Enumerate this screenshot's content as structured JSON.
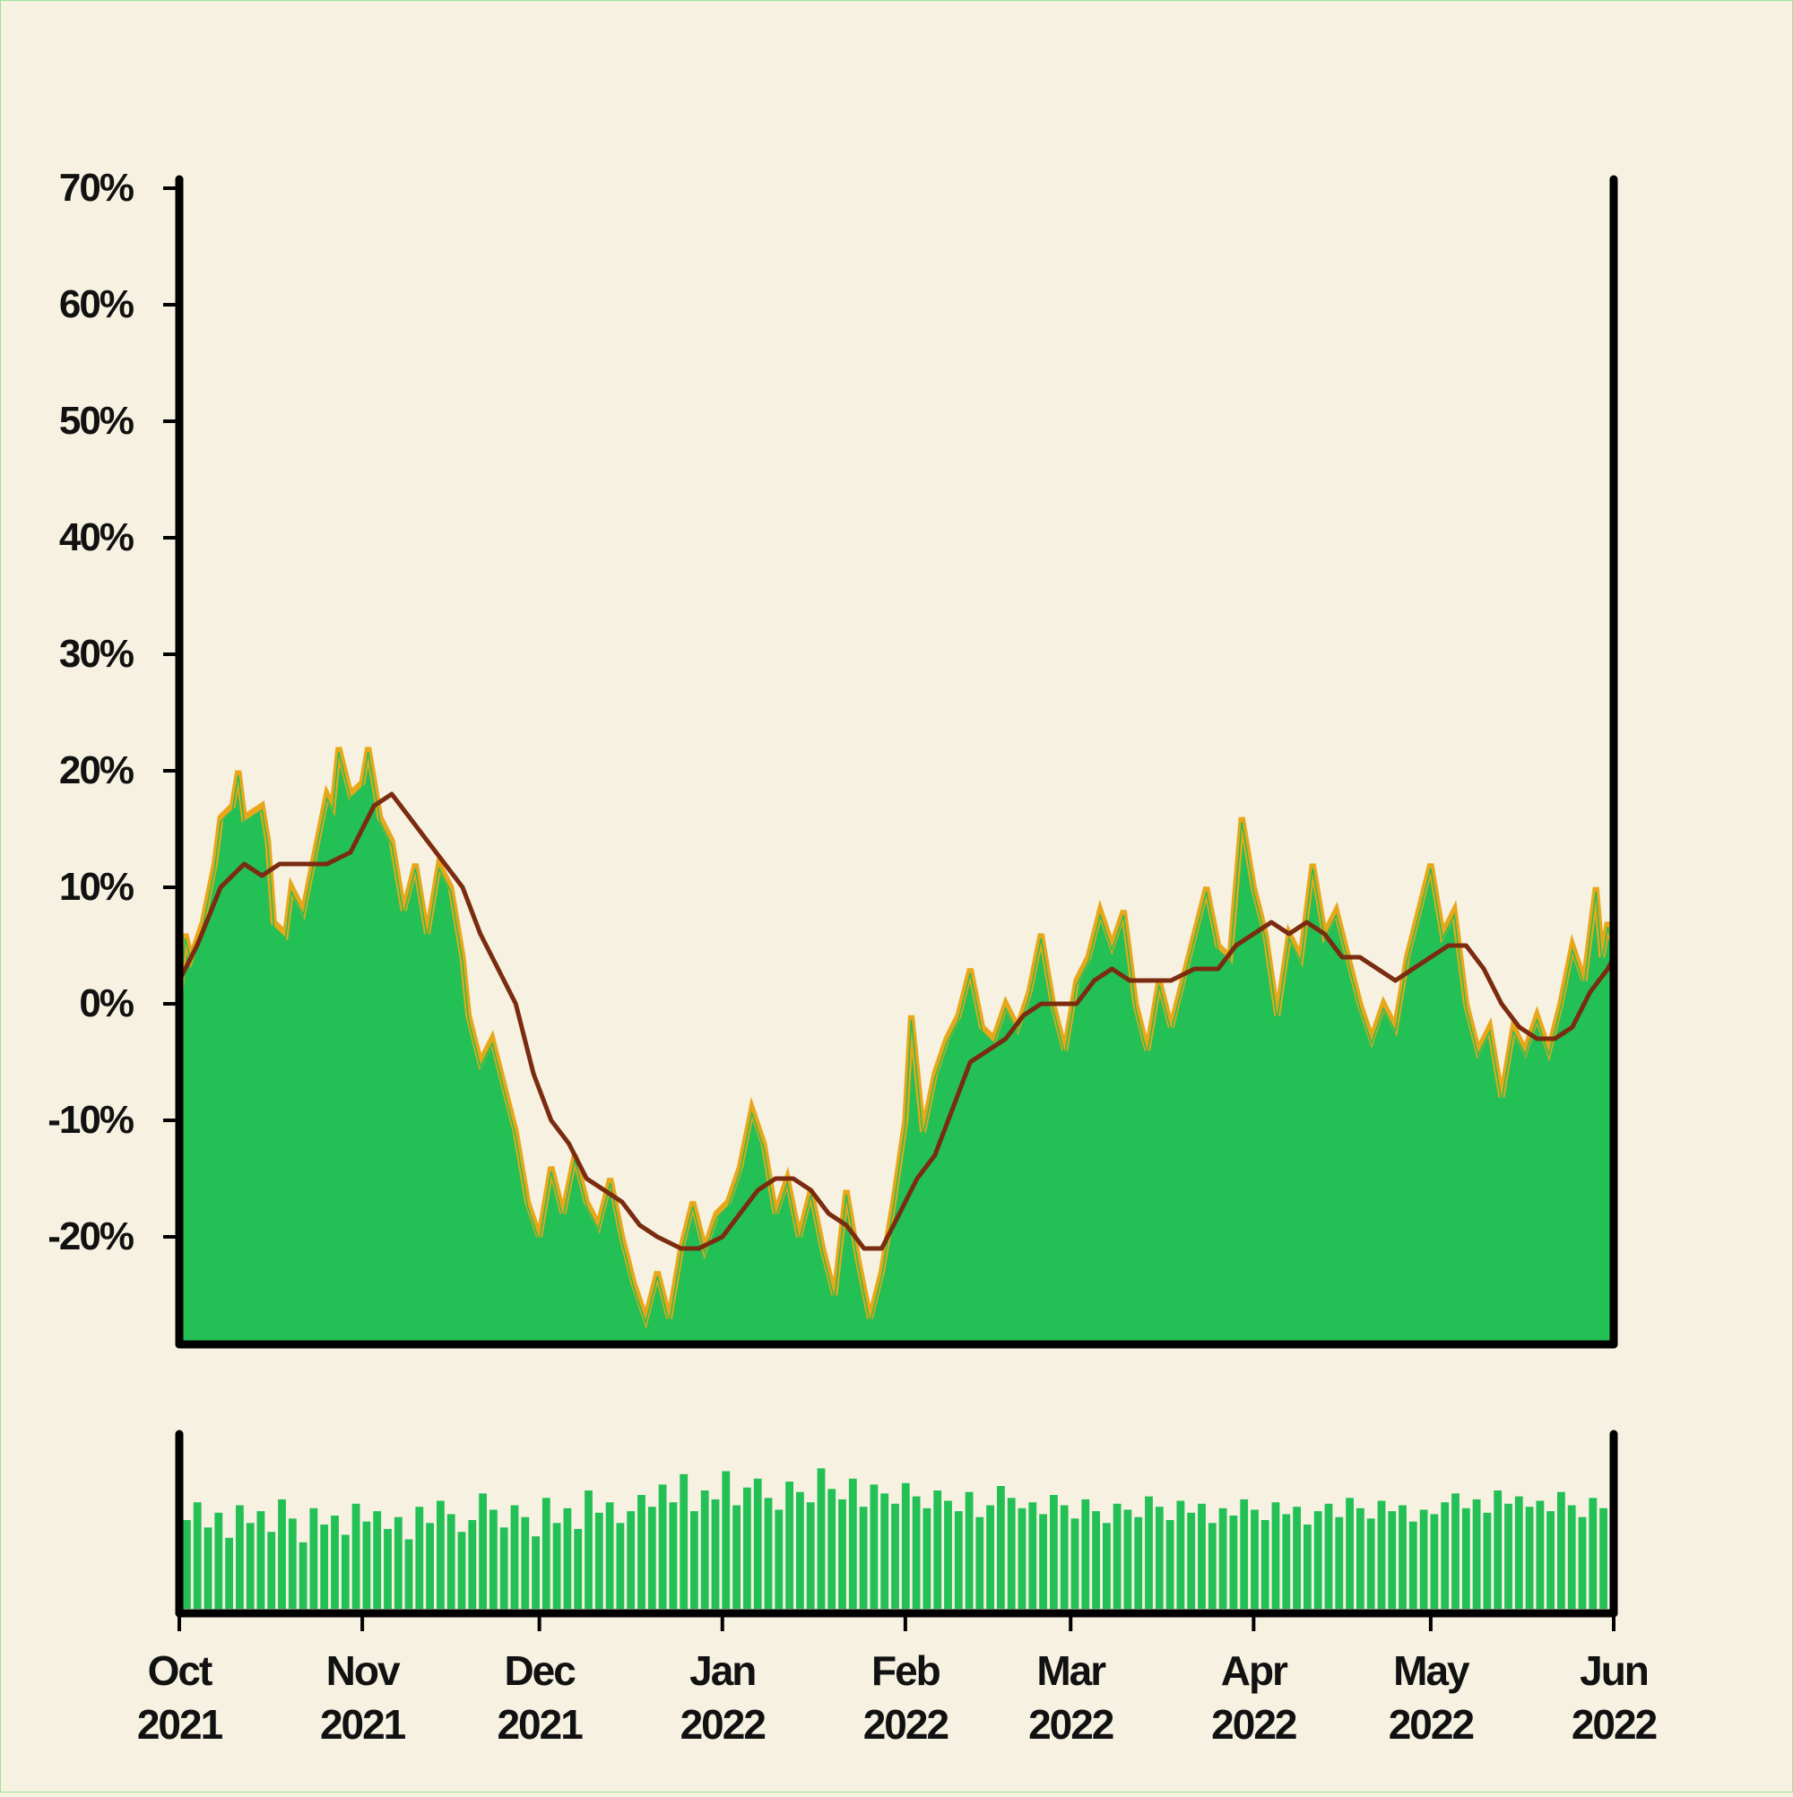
{
  "chart_data": {
    "type": "area",
    "title": "",
    "xlabel": "",
    "ylabel": "",
    "x_start": "2021-10-01",
    "x_end": "2022-06-01",
    "ylim": [
      -28,
      70
    ],
    "y_ticks": [
      70,
      60,
      50,
      40,
      30,
      20,
      10,
      0,
      -10,
      -20
    ],
    "y_tick_labels": [
      "70%",
      "60%",
      "50%",
      "40%",
      "30%",
      "20%",
      "10%",
      "0%",
      "-10%",
      "-20%"
    ],
    "x_ticks": [
      {
        "date": "2021-10-01",
        "month": "Oct",
        "year": "2021"
      },
      {
        "date": "2021-11-01",
        "month": "Nov",
        "year": "2021"
      },
      {
        "date": "2021-12-01",
        "month": "Dec",
        "year": "2021"
      },
      {
        "date": "2022-01-01",
        "month": "Jan",
        "year": "2022"
      },
      {
        "date": "2022-02-01",
        "month": "Feb",
        "year": "2022"
      },
      {
        "date": "2022-03-01",
        "month": "Mar",
        "year": "2022"
      },
      {
        "date": "2022-04-01",
        "month": "Apr",
        "year": "2022"
      },
      {
        "date": "2022-05-01",
        "month": "May",
        "year": "2022"
      },
      {
        "date": "2022-06-01",
        "month": "Jun",
        "year": "2022"
      }
    ],
    "colors": {
      "area_fill": "#22c055",
      "upper_band": "#e8a719",
      "moving_average": "#7a2b10",
      "volume_bars": "#22c055",
      "axis": "#000000",
      "background": "#f6f1e1"
    },
    "series": [
      {
        "type": "area",
        "points": [
          {
            "x": "2021-10-01",
            "y": 0
          },
          {
            "x": "2021-10-02",
            "y": 6
          },
          {
            "x": "2021-10-03",
            "y": 4
          },
          {
            "x": "2021-10-05",
            "y": 7
          },
          {
            "x": "2021-10-07",
            "y": 12
          },
          {
            "x": "2021-10-08",
            "y": 16
          },
          {
            "x": "2021-10-10",
            "y": 17
          },
          {
            "x": "2021-10-11",
            "y": 20
          },
          {
            "x": "2021-10-12",
            "y": 16
          },
          {
            "x": "2021-10-15",
            "y": 17
          },
          {
            "x": "2021-10-16",
            "y": 14
          },
          {
            "x": "2021-10-17",
            "y": 7
          },
          {
            "x": "2021-10-19",
            "y": 6
          },
          {
            "x": "2021-10-20",
            "y": 10
          },
          {
            "x": "2021-10-22",
            "y": 8
          },
          {
            "x": "2021-10-24",
            "y": 13
          },
          {
            "x": "2021-10-26",
            "y": 18
          },
          {
            "x": "2021-10-27",
            "y": 17
          },
          {
            "x": "2021-10-28",
            "y": 22
          },
          {
            "x": "2021-10-30",
            "y": 18
          },
          {
            "x": "2021-11-01",
            "y": 19
          },
          {
            "x": "2021-11-02",
            "y": 22
          },
          {
            "x": "2021-11-04",
            "y": 16
          },
          {
            "x": "2021-11-06",
            "y": 14
          },
          {
            "x": "2021-11-08",
            "y": 8
          },
          {
            "x": "2021-11-10",
            "y": 12
          },
          {
            "x": "2021-11-12",
            "y": 6
          },
          {
            "x": "2021-11-14",
            "y": 12
          },
          {
            "x": "2021-11-16",
            "y": 10
          },
          {
            "x": "2021-11-18",
            "y": 4
          },
          {
            "x": "2021-11-19",
            "y": -1
          },
          {
            "x": "2021-11-21",
            "y": -5
          },
          {
            "x": "2021-11-23",
            "y": -3
          },
          {
            "x": "2021-11-25",
            "y": -7
          },
          {
            "x": "2021-11-27",
            "y": -11
          },
          {
            "x": "2021-11-29",
            "y": -17
          },
          {
            "x": "2021-12-01",
            "y": -20
          },
          {
            "x": "2021-12-03",
            "y": -14
          },
          {
            "x": "2021-12-05",
            "y": -18
          },
          {
            "x": "2021-12-07",
            "y": -13
          },
          {
            "x": "2021-12-09",
            "y": -17
          },
          {
            "x": "2021-12-11",
            "y": -19
          },
          {
            "x": "2021-12-13",
            "y": -15
          },
          {
            "x": "2021-12-15",
            "y": -20
          },
          {
            "x": "2021-12-17",
            "y": -24
          },
          {
            "x": "2021-12-19",
            "y": -27
          },
          {
            "x": "2021-12-21",
            "y": -23
          },
          {
            "x": "2021-12-23",
            "y": -27
          },
          {
            "x": "2021-12-25",
            "y": -21
          },
          {
            "x": "2021-12-27",
            "y": -17
          },
          {
            "x": "2021-12-29",
            "y": -21
          },
          {
            "x": "2021-12-31",
            "y": -18
          },
          {
            "x": "2022-01-02",
            "y": -17
          },
          {
            "x": "2022-01-04",
            "y": -14
          },
          {
            "x": "2022-01-06",
            "y": -9
          },
          {
            "x": "2022-01-08",
            "y": -12
          },
          {
            "x": "2022-01-10",
            "y": -18
          },
          {
            "x": "2022-01-12",
            "y": -15
          },
          {
            "x": "2022-01-14",
            "y": -20
          },
          {
            "x": "2022-01-16",
            "y": -16
          },
          {
            "x": "2022-01-18",
            "y": -21
          },
          {
            "x": "2022-01-20",
            "y": -25
          },
          {
            "x": "2022-01-22",
            "y": -16
          },
          {
            "x": "2022-01-24",
            "y": -22
          },
          {
            "x": "2022-01-26",
            "y": -27
          },
          {
            "x": "2022-01-28",
            "y": -23
          },
          {
            "x": "2022-01-30",
            "y": -17
          },
          {
            "x": "2022-02-01",
            "y": -10
          },
          {
            "x": "2022-02-02",
            "y": -1
          },
          {
            "x": "2022-02-04",
            "y": -11
          },
          {
            "x": "2022-02-06",
            "y": -6
          },
          {
            "x": "2022-02-08",
            "y": -3
          },
          {
            "x": "2022-02-10",
            "y": -1
          },
          {
            "x": "2022-02-12",
            "y": 3
          },
          {
            "x": "2022-02-14",
            "y": -2
          },
          {
            "x": "2022-02-16",
            "y": -3
          },
          {
            "x": "2022-02-18",
            "y": 0
          },
          {
            "x": "2022-02-20",
            "y": -2
          },
          {
            "x": "2022-02-22",
            "y": 1
          },
          {
            "x": "2022-02-24",
            "y": 6
          },
          {
            "x": "2022-02-26",
            "y": 0
          },
          {
            "x": "2022-02-28",
            "y": -4
          },
          {
            "x": "2022-03-02",
            "y": 2
          },
          {
            "x": "2022-03-04",
            "y": 4
          },
          {
            "x": "2022-03-06",
            "y": 8
          },
          {
            "x": "2022-03-08",
            "y": 5
          },
          {
            "x": "2022-03-10",
            "y": 8
          },
          {
            "x": "2022-03-12",
            "y": 0
          },
          {
            "x": "2022-03-14",
            "y": -4
          },
          {
            "x": "2022-03-16",
            "y": 2
          },
          {
            "x": "2022-03-18",
            "y": -2
          },
          {
            "x": "2022-03-20",
            "y": 2
          },
          {
            "x": "2022-03-22",
            "y": 6
          },
          {
            "x": "2022-03-24",
            "y": 10
          },
          {
            "x": "2022-03-26",
            "y": 5
          },
          {
            "x": "2022-03-28",
            "y": 4
          },
          {
            "x": "2022-03-30",
            "y": 16
          },
          {
            "x": "2022-04-01",
            "y": 10
          },
          {
            "x": "2022-04-03",
            "y": 6
          },
          {
            "x": "2022-04-05",
            "y": -1
          },
          {
            "x": "2022-04-07",
            "y": 6
          },
          {
            "x": "2022-04-09",
            "y": 4
          },
          {
            "x": "2022-04-11",
            "y": 12
          },
          {
            "x": "2022-04-13",
            "y": 6
          },
          {
            "x": "2022-04-15",
            "y": 8
          },
          {
            "x": "2022-04-17",
            "y": 4
          },
          {
            "x": "2022-04-19",
            "y": 0
          },
          {
            "x": "2022-04-21",
            "y": -3
          },
          {
            "x": "2022-04-23",
            "y": 0
          },
          {
            "x": "2022-04-25",
            "y": -2
          },
          {
            "x": "2022-04-27",
            "y": 4
          },
          {
            "x": "2022-04-29",
            "y": 8
          },
          {
            "x": "2022-05-01",
            "y": 12
          },
          {
            "x": "2022-05-03",
            "y": 6
          },
          {
            "x": "2022-05-05",
            "y": 8
          },
          {
            "x": "2022-05-07",
            "y": 0
          },
          {
            "x": "2022-05-09",
            "y": -4
          },
          {
            "x": "2022-05-11",
            "y": -2
          },
          {
            "x": "2022-05-13",
            "y": -8
          },
          {
            "x": "2022-05-15",
            "y": -2
          },
          {
            "x": "2022-05-17",
            "y": -4
          },
          {
            "x": "2022-05-19",
            "y": -1
          },
          {
            "x": "2022-05-21",
            "y": -4
          },
          {
            "x": "2022-05-23",
            "y": 0
          },
          {
            "x": "2022-05-25",
            "y": 5
          },
          {
            "x": "2022-05-27",
            "y": 2
          },
          {
            "x": "2022-05-29",
            "y": 10
          },
          {
            "x": "2022-05-30",
            "y": 4
          },
          {
            "x": "2022-05-31",
            "y": 7
          },
          {
            "x": "2022-06-01",
            "y": 5
          }
        ]
      },
      {
        "type": "line",
        "points": [
          {
            "x": "2021-10-01",
            "y": 2
          },
          {
            "x": "2021-10-04",
            "y": 5
          },
          {
            "x": "2021-10-08",
            "y": 10
          },
          {
            "x": "2021-10-12",
            "y": 12
          },
          {
            "x": "2021-10-15",
            "y": 11
          },
          {
            "x": "2021-10-18",
            "y": 12
          },
          {
            "x": "2021-10-22",
            "y": 12
          },
          {
            "x": "2021-10-26",
            "y": 12
          },
          {
            "x": "2021-10-30",
            "y": 13
          },
          {
            "x": "2021-11-03",
            "y": 17
          },
          {
            "x": "2021-11-06",
            "y": 18
          },
          {
            "x": "2021-11-09",
            "y": 16
          },
          {
            "x": "2021-11-12",
            "y": 14
          },
          {
            "x": "2021-11-15",
            "y": 12
          },
          {
            "x": "2021-11-18",
            "y": 10
          },
          {
            "x": "2021-11-21",
            "y": 6
          },
          {
            "x": "2021-11-24",
            "y": 3
          },
          {
            "x": "2021-11-27",
            "y": 0
          },
          {
            "x": "2021-11-30",
            "y": -6
          },
          {
            "x": "2021-12-03",
            "y": -10
          },
          {
            "x": "2021-12-06",
            "y": -12
          },
          {
            "x": "2021-12-09",
            "y": -15
          },
          {
            "x": "2021-12-12",
            "y": -16
          },
          {
            "x": "2021-12-15",
            "y": -17
          },
          {
            "x": "2021-12-18",
            "y": -19
          },
          {
            "x": "2021-12-21",
            "y": -20
          },
          {
            "x": "2021-12-25",
            "y": -21
          },
          {
            "x": "2021-12-28",
            "y": -21
          },
          {
            "x": "2022-01-01",
            "y": -20
          },
          {
            "x": "2022-01-04",
            "y": -18
          },
          {
            "x": "2022-01-07",
            "y": -16
          },
          {
            "x": "2022-01-10",
            "y": -15
          },
          {
            "x": "2022-01-13",
            "y": -15
          },
          {
            "x": "2022-01-16",
            "y": -16
          },
          {
            "x": "2022-01-19",
            "y": -18
          },
          {
            "x": "2022-01-22",
            "y": -19
          },
          {
            "x": "2022-01-25",
            "y": -21
          },
          {
            "x": "2022-01-28",
            "y": -21
          },
          {
            "x": "2022-01-31",
            "y": -18
          },
          {
            "x": "2022-02-03",
            "y": -15
          },
          {
            "x": "2022-02-06",
            "y": -13
          },
          {
            "x": "2022-02-09",
            "y": -9
          },
          {
            "x": "2022-02-12",
            "y": -5
          },
          {
            "x": "2022-02-15",
            "y": -4
          },
          {
            "x": "2022-02-18",
            "y": -3
          },
          {
            "x": "2022-02-21",
            "y": -1
          },
          {
            "x": "2022-02-24",
            "y": 0
          },
          {
            "x": "2022-02-27",
            "y": 0
          },
          {
            "x": "2022-03-02",
            "y": 0
          },
          {
            "x": "2022-03-05",
            "y": 2
          },
          {
            "x": "2022-03-08",
            "y": 3
          },
          {
            "x": "2022-03-11",
            "y": 2
          },
          {
            "x": "2022-03-14",
            "y": 2
          },
          {
            "x": "2022-03-18",
            "y": 2
          },
          {
            "x": "2022-03-22",
            "y": 3
          },
          {
            "x": "2022-03-26",
            "y": 3
          },
          {
            "x": "2022-03-29",
            "y": 5
          },
          {
            "x": "2022-04-01",
            "y": 6
          },
          {
            "x": "2022-04-04",
            "y": 7
          },
          {
            "x": "2022-04-07",
            "y": 6
          },
          {
            "x": "2022-04-10",
            "y": 7
          },
          {
            "x": "2022-04-13",
            "y": 6
          },
          {
            "x": "2022-04-16",
            "y": 4
          },
          {
            "x": "2022-04-19",
            "y": 4
          },
          {
            "x": "2022-04-22",
            "y": 3
          },
          {
            "x": "2022-04-25",
            "y": 2
          },
          {
            "x": "2022-04-28",
            "y": 3
          },
          {
            "x": "2022-05-01",
            "y": 4
          },
          {
            "x": "2022-05-04",
            "y": 5
          },
          {
            "x": "2022-05-07",
            "y": 5
          },
          {
            "x": "2022-05-10",
            "y": 3
          },
          {
            "x": "2022-05-13",
            "y": 0
          },
          {
            "x": "2022-05-16",
            "y": -2
          },
          {
            "x": "2022-05-19",
            "y": -3
          },
          {
            "x": "2022-05-22",
            "y": -3
          },
          {
            "x": "2022-05-25",
            "y": -2
          },
          {
            "x": "2022-05-28",
            "y": 1
          },
          {
            "x": "2022-05-31",
            "y": 3
          },
          {
            "x": "2022-06-01",
            "y": 4
          }
        ]
      }
    ],
    "volume": {
      "type": "bar",
      "relative_heights": [
        0.6,
        0.72,
        0.55,
        0.65,
        0.48,
        0.7,
        0.58,
        0.66,
        0.52,
        0.74,
        0.61,
        0.45,
        0.68,
        0.57,
        0.63,
        0.5,
        0.71,
        0.59,
        0.66,
        0.54,
        0.62,
        0.47,
        0.69,
        0.58,
        0.73,
        0.64,
        0.52,
        0.6,
        0.78,
        0.67,
        0.55,
        0.7,
        0.62,
        0.49,
        0.75,
        0.58,
        0.68,
        0.54,
        0.8,
        0.65,
        0.72,
        0.58,
        0.66,
        0.77,
        0.69,
        0.84,
        0.72,
        0.91,
        0.66,
        0.8,
        0.74,
        0.93,
        0.7,
        0.82,
        0.88,
        0.75,
        0.67,
        0.86,
        0.79,
        0.72,
        0.95,
        0.81,
        0.74,
        0.88,
        0.69,
        0.84,
        0.78,
        0.71,
        0.85,
        0.76,
        0.68,
        0.8,
        0.73,
        0.66,
        0.79,
        0.62,
        0.7,
        0.83,
        0.75,
        0.68,
        0.72,
        0.64,
        0.77,
        0.7,
        0.61,
        0.74,
        0.66,
        0.58,
        0.71,
        0.67,
        0.62,
        0.76,
        0.69,
        0.6,
        0.73,
        0.65,
        0.71,
        0.58,
        0.68,
        0.63,
        0.74,
        0.67,
        0.6,
        0.72,
        0.64,
        0.69,
        0.57,
        0.66,
        0.71,
        0.62,
        0.75,
        0.68,
        0.61,
        0.73,
        0.66,
        0.7,
        0.59,
        0.67,
        0.64,
        0.72,
        0.78,
        0.68,
        0.74,
        0.65,
        0.8,
        0.71,
        0.76,
        0.69,
        0.73,
        0.66,
        0.79,
        0.7,
        0.62,
        0.75,
        0.68
      ]
    }
  }
}
